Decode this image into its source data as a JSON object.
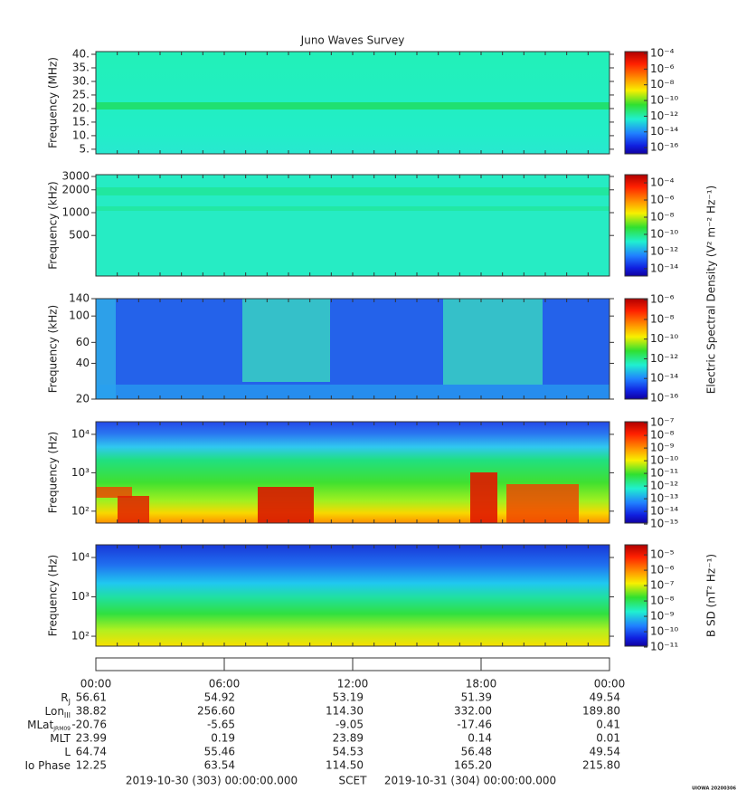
{
  "chart_data": {
    "type": "spectrogram",
    "title": "Juno Waves Survey",
    "xlim": [
      0,
      24
    ],
    "xticks": [
      {
        "value": 0,
        "label": "00:00"
      },
      {
        "value": 6,
        "label": "06:00"
      },
      {
        "value": 12,
        "label": "12:00"
      },
      {
        "value": 18,
        "label": "18:00"
      },
      {
        "value": 24,
        "label": "00:00"
      }
    ],
    "panels": [
      {
        "ylabel": "Frequency (MHz)",
        "yscale": "linear",
        "ylim": [
          3.3,
          41
        ],
        "yticks": [
          {
            "value": 5,
            "label": "5."
          },
          {
            "value": 10,
            "label": "10."
          },
          {
            "value": 15,
            "label": "15."
          },
          {
            "value": 20,
            "label": "20."
          },
          {
            "value": 25,
            "label": "25."
          },
          {
            "value": 30,
            "label": "30."
          },
          {
            "value": 35,
            "label": "35."
          },
          {
            "value": 40,
            "label": "40."
          }
        ],
        "clim": [
          1.6e-17,
          0.00017
        ],
        "cticks": [
          {
            "value": 0.0001,
            "label": "10⁻⁴"
          },
          {
            "value": 1e-06,
            "label": "10⁻⁶"
          },
          {
            "value": 1e-08,
            "label": "10⁻⁸"
          },
          {
            "value": 1e-10,
            "label": "10⁻¹⁰"
          },
          {
            "value": 1e-12,
            "label": "10⁻¹²"
          },
          {
            "value": 1e-14,
            "label": "10⁻¹⁴"
          },
          {
            "value": 1e-16,
            "label": "10⁻¹⁶"
          }
        ]
      },
      {
        "ylabel": "Frequency (kHz)",
        "yscale": "log",
        "ylim": [
          146,
          3170
        ],
        "yticks": [
          500,
          1000,
          2000,
          3000
        ],
        "clim": [
          1.4e-15,
          0.0009
        ],
        "cticks": [
          {
            "value": 0.0001,
            "label": "10⁻⁴"
          },
          {
            "value": 1e-06,
            "label": "10⁻⁶"
          },
          {
            "value": 1e-08,
            "label": "10⁻⁸"
          },
          {
            "value": 1e-10,
            "label": "10⁻¹⁰"
          },
          {
            "value": 1e-12,
            "label": "10⁻¹²"
          },
          {
            "value": 1e-14,
            "label": "10⁻¹⁴"
          }
        ]
      },
      {
        "ylabel": "Frequency (kHz)",
        "yscale": "log",
        "ylim": [
          20,
          140
        ],
        "yticks": [
          20,
          40,
          60,
          100,
          140
        ],
        "clim": [
          8e-17,
          1.3e-06
        ],
        "cticks": [
          {
            "value": 1e-06,
            "label": "10⁻⁶"
          },
          {
            "value": 1e-08,
            "label": "10⁻⁸"
          },
          {
            "value": 1e-10,
            "label": "10⁻¹⁰"
          },
          {
            "value": 1e-12,
            "label": "10⁻¹²"
          },
          {
            "value": 1e-14,
            "label": "10⁻¹⁴"
          },
          {
            "value": 1e-16,
            "label": "10⁻¹⁶"
          }
        ]
      },
      {
        "ylabel": "Frequency (Hz)",
        "yscale": "log",
        "ylim": [
          49,
          21300
        ],
        "yticks": [
          {
            "value": 100,
            "label": "10²"
          },
          {
            "value": 1000,
            "label": "10³"
          },
          {
            "value": 10000,
            "label": "10⁴"
          }
        ],
        "clim": [
          1.2e-15,
          1.2e-07
        ],
        "cticks": [
          {
            "value": 1e-07,
            "label": "10⁻⁷"
          },
          {
            "value": 1e-08,
            "label": "10⁻⁸"
          },
          {
            "value": 1e-09,
            "label": "10⁻⁹"
          },
          {
            "value": 1e-10,
            "label": "10⁻¹⁰"
          },
          {
            "value": 1e-11,
            "label": "10⁻¹¹"
          },
          {
            "value": 1e-12,
            "label": "10⁻¹²"
          },
          {
            "value": 1e-13,
            "label": "10⁻¹³"
          },
          {
            "value": 1e-14,
            "label": "10⁻¹⁴"
          },
          {
            "value": 1e-15,
            "label": "10⁻¹⁵"
          }
        ]
      },
      {
        "ylabel": "Frequency (Hz)",
        "yscale": "log",
        "ylim": [
          56,
          21000
        ],
        "yticks": [
          {
            "value": 100,
            "label": "10²"
          },
          {
            "value": 1000,
            "label": "10³"
          },
          {
            "value": 10000,
            "label": "10⁴"
          }
        ],
        "clim": [
          1.15e-11,
          4.5e-05
        ],
        "cticks": [
          {
            "value": 1e-05,
            "label": "10⁻⁵"
          },
          {
            "value": 1e-06,
            "label": "10⁻⁶"
          },
          {
            "value": 1e-07,
            "label": "10⁻⁷"
          },
          {
            "value": 1e-08,
            "label": "10⁻⁸"
          },
          {
            "value": 1e-09,
            "label": "10⁻⁹"
          },
          {
            "value": 1e-10,
            "label": "10⁻¹⁰"
          },
          {
            "value": 1e-11,
            "label": "10⁻¹¹"
          }
        ]
      }
    ],
    "colorbar_label_electric": "Electric Spectral Density (V² m⁻² Hz⁻¹)",
    "colorbar_label_magnetic": "B SD (nT² Hz⁻¹)",
    "ephemeris": [
      {
        "label": "R",
        "sub": "J",
        "values": [
          "56.61",
          "54.92",
          "53.19",
          "51.39",
          "49.54"
        ]
      },
      {
        "label": "Lon",
        "sub": "III",
        "values": [
          "38.82",
          "256.60",
          "114.30",
          "332.00",
          "189.80"
        ]
      },
      {
        "label": "MLat",
        "sub": "JRM09",
        "values": [
          "-20.76",
          "-5.65",
          "-9.05",
          "-17.46",
          "0.41"
        ]
      },
      {
        "label": "MLT",
        "values": [
          "23.99",
          "0.19",
          "23.89",
          "0.14",
          "0.01"
        ]
      },
      {
        "label": "L",
        "values": [
          "64.74",
          "55.46",
          "54.53",
          "56.48",
          "49.54"
        ]
      },
      {
        "label": "Io Phase",
        "values": [
          "12.25",
          "63.54",
          "114.50",
          "165.20",
          "215.80"
        ]
      }
    ],
    "footer": {
      "start": "2019-10-30 (303) 00:00:00.000",
      "scet": "SCET",
      "end": "2019-10-31 (304) 00:00:00.000"
    },
    "credit": "UIOWA 20200306"
  }
}
